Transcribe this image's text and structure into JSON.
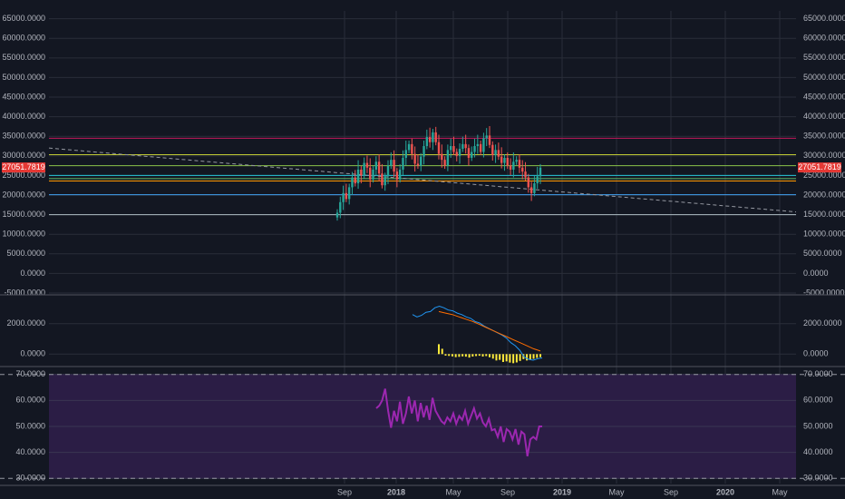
{
  "chart_data": {
    "type": "candlestick",
    "symbol_last_price": "27051.7819",
    "x_tick_labels": [
      "Sep",
      "2018",
      "May",
      "Sep",
      "2019",
      "May",
      "Sep",
      "2020",
      "May"
    ],
    "colors": {
      "background": "#131722",
      "grid": "#2a2e39",
      "up": "#26a69a",
      "down": "#ef5350",
      "price_tag": "#e53935",
      "macd_line": "#2196f3",
      "signal_line": "#ff6d00",
      "histogram": "#ffeb3b",
      "rsi_line": "#9c27b0",
      "rsi_band": "#2b1d45"
    },
    "price_panel": {
      "ylim": [
        -5000,
        67000
      ],
      "ticks": [
        -5000,
        0,
        5000,
        10000,
        15000,
        20000,
        25000,
        30000,
        35000,
        40000,
        45000,
        50000,
        55000,
        60000,
        65000
      ],
      "tick_labels": [
        "-5000.0000",
        "0.0000",
        "5000.0000",
        "10000.0000",
        "15000.0000",
        "20000.0000",
        "25000.0000",
        "30000.0000",
        "35000.0000",
        "40000.0000",
        "45000.0000",
        "50000.0000",
        "55000.0000",
        "60000.0000",
        "65000.0000"
      ],
      "horizontal_levels": [
        {
          "value": 34500,
          "color": "#c2185b"
        },
        {
          "value": 30300,
          "color": "#c0ca33"
        },
        {
          "value": 27500,
          "color": "#8bc34a"
        },
        {
          "value": 25000,
          "color": "#26c6da"
        },
        {
          "value": 24200,
          "color": "#66bb6a"
        },
        {
          "value": 23600,
          "color": "#ff9800"
        },
        {
          "value": 20100,
          "color": "#42a5f5"
        },
        {
          "value": 15000,
          "color": "#b0bec5"
        }
      ],
      "trendline": {
        "from": [
          0,
          32000
        ],
        "to": [
          100,
          15700
        ],
        "color": "#9598a1"
      },
      "close": [
        15500,
        18200,
        20500,
        19000,
        22000,
        24500,
        23000,
        26500,
        25000,
        28200,
        27000,
        24000,
        26500,
        28500,
        25500,
        22500,
        24800,
        27500,
        29000,
        26000,
        24000,
        26500,
        29500,
        31500,
        33000,
        30500,
        28000,
        27500,
        29800,
        32500,
        34800,
        33500,
        36000,
        33500,
        30500,
        29000,
        27500,
        31500,
        32500,
        31000,
        30000,
        31800,
        33000,
        32000,
        29500,
        31000,
        32500,
        33000,
        31000,
        34500,
        35200,
        32800,
        30200,
        31500,
        29800,
        28200,
        29500,
        27500,
        26500,
        28500,
        29000,
        27000,
        26000,
        24500,
        22000,
        20500,
        23000,
        24800,
        27000
      ]
    },
    "macd_panel": {
      "ylim": [
        -700,
        3600
      ],
      "ticks": [
        0,
        2000
      ],
      "tick_labels": [
        "0.0000",
        "2000.0000"
      ],
      "macd": [
        2600,
        2450,
        2550,
        2750,
        2800,
        3050,
        3150,
        3050,
        2900,
        2850,
        2700,
        2600,
        2450,
        2350,
        2150,
        2050,
        1850,
        1700,
        1550,
        1400,
        1250,
        1050,
        750,
        550,
        250,
        -200,
        -350,
        -400,
        -300,
        -250
      ],
      "signal": [
        2800,
        2700,
        2600,
        2450,
        2300,
        2150,
        1950,
        1750,
        1550,
        1350,
        1150,
        950,
        750,
        550,
        350,
        200
      ],
      "histogram": [
        650,
        350,
        -100,
        -120,
        -150,
        -200,
        -180,
        -150,
        -170,
        -230,
        -160,
        -130,
        -110,
        -160,
        -130,
        -210,
        -300,
        -420,
        -380,
        -520,
        -480,
        -560,
        -600,
        -550,
        -450,
        -330,
        -420,
        -360,
        -310,
        -250,
        -200
      ]
    },
    "rsi_panel": {
      "ylim": [
        28,
        72
      ],
      "ticks": [
        30,
        40,
        50,
        60,
        70
      ],
      "tick_labels": [
        "30.0000",
        "40.0000",
        "50.0000",
        "60.0000",
        "70.0000"
      ],
      "band": [
        30,
        70
      ],
      "values": [
        57,
        58,
        60,
        64.5,
        56,
        49.5,
        56,
        52,
        59.5,
        51,
        55,
        61.5,
        55,
        60,
        52,
        59,
        53.5,
        58,
        52.5,
        61,
        56,
        54,
        52,
        51,
        53.5,
        52,
        55,
        51,
        54,
        52.5,
        56,
        51,
        54,
        57,
        53,
        55,
        51.5,
        50,
        53,
        48.5,
        49,
        46,
        50,
        44,
        49,
        48,
        45,
        49,
        43,
        48,
        47,
        38.5,
        45,
        46,
        45,
        50,
        50
      ]
    }
  }
}
